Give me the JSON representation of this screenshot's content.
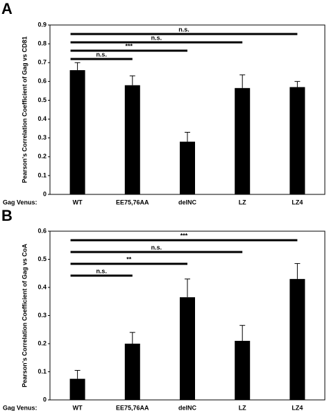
{
  "chart_data": [
    {
      "type": "bar",
      "panel": "A",
      "ylabel": "Pearson's Correlation Coefficient of Gag vs CD81",
      "x_label": "Gag Venus:",
      "categories": [
        "WT",
        "EE75,76AA",
        "delNC",
        "LZ",
        "LZ4"
      ],
      "values": [
        0.66,
        0.58,
        0.28,
        0.565,
        0.57
      ],
      "errors": [
        0.04,
        0.05,
        0.05,
        0.07,
        0.03
      ],
      "color": "#000000",
      "ylim": [
        0,
        0.9
      ],
      "yticks": [
        0,
        0.1,
        0.2,
        0.3,
        0.4,
        0.5,
        0.6,
        0.7,
        0.8,
        0.9
      ],
      "comparisons": [
        {
          "from": "WT",
          "to": "LZ4",
          "label": "n.s."
        },
        {
          "from": "WT",
          "to": "LZ",
          "label": "n.s."
        },
        {
          "from": "WT",
          "to": "delNC",
          "label": "***"
        },
        {
          "from": "WT",
          "to": "EE75,76AA",
          "label": "n.s."
        }
      ]
    },
    {
      "type": "bar",
      "panel": "B",
      "ylabel": "Pearson's Correlation Coefficient of Gag vs CoA",
      "x_label": "Gag Venus:",
      "categories": [
        "WT",
        "EE75,76AA",
        "delNC",
        "LZ",
        "LZ4"
      ],
      "values": [
        0.075,
        0.2,
        0.365,
        0.21,
        0.43
      ],
      "errors": [
        0.03,
        0.04,
        0.065,
        0.055,
        0.055
      ],
      "color": "#000000",
      "ylim": [
        0,
        0.6
      ],
      "yticks": [
        0,
        0.1,
        0.2,
        0.3,
        0.4,
        0.5,
        0.6
      ],
      "comparisons": [
        {
          "from": "WT",
          "to": "LZ4",
          "label": "***"
        },
        {
          "from": "WT",
          "to": "LZ",
          "label": "n.s."
        },
        {
          "from": "WT",
          "to": "delNC",
          "label": "**"
        },
        {
          "from": "WT",
          "to": "EE75,76AA",
          "label": "n.s."
        }
      ]
    }
  ]
}
